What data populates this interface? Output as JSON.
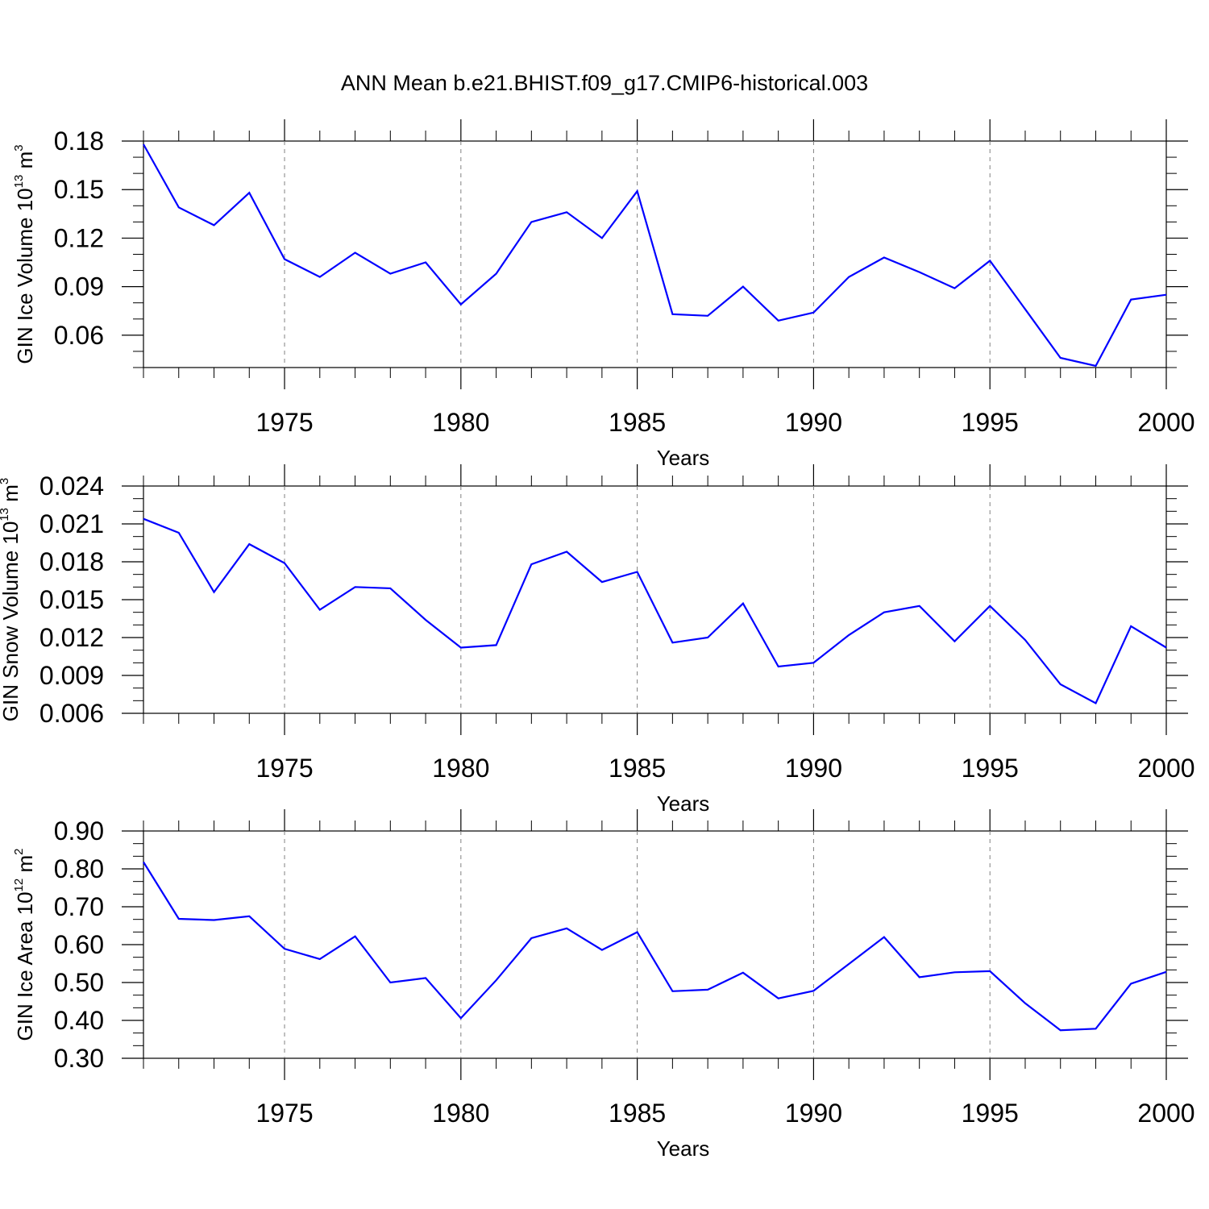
{
  "colors": {
    "line": "#0000ff",
    "axis": "#000000",
    "grid": "#808080",
    "background": "#ffffff"
  },
  "chart_data": [
    {
      "type": "line",
      "title": "ANN Mean b.e21.BHIST.f09_g17.CMIP6-historical.003",
      "xlabel": "Years",
      "ylabel": {
        "base": "GIN Ice Volume 10",
        "exp": "13",
        "unit": " m",
        "unit_exp": "3"
      },
      "xlim": [
        1971,
        2000
      ],
      "ylim": [
        0.04,
        0.18
      ],
      "x_ticks": [
        1975,
        1980,
        1985,
        1990,
        1995,
        2000
      ],
      "y_ticks": [
        "0.06",
        "0.09",
        "0.12",
        "0.15",
        "0.18"
      ],
      "grid": "vertical dashed at major x ticks",
      "x": [
        1971,
        1972,
        1973,
        1974,
        1975,
        1976,
        1977,
        1978,
        1979,
        1980,
        1981,
        1982,
        1983,
        1984,
        1985,
        1986,
        1987,
        1988,
        1989,
        1990,
        1991,
        1992,
        1993,
        1994,
        1995,
        1996,
        1997,
        1998,
        1999,
        2000
      ],
      "series": [
        {
          "values": [
            0.178,
            0.139,
            0.128,
            0.148,
            0.107,
            0.096,
            0.111,
            0.098,
            0.105,
            0.079,
            0.098,
            0.13,
            0.136,
            0.12,
            0.149,
            0.073,
            0.072,
            0.09,
            0.069,
            0.074,
            0.096,
            0.108,
            0.099,
            0.089,
            0.106,
            0.076,
            0.046,
            0.041,
            0.082,
            0.085
          ]
        }
      ]
    },
    {
      "type": "line",
      "title": "",
      "xlabel": "Years",
      "ylabel": {
        "base": "GIN Snow Volume 10",
        "exp": "13",
        "unit": " m",
        "unit_exp": "3"
      },
      "xlim": [
        1971,
        2000
      ],
      "ylim": [
        0.006,
        0.024
      ],
      "x_ticks": [
        1975,
        1980,
        1985,
        1990,
        1995,
        2000
      ],
      "y_ticks": [
        "0.006",
        "0.009",
        "0.012",
        "0.015",
        "0.018",
        "0.021",
        "0.024"
      ],
      "grid": "vertical dashed at major x ticks",
      "x": [
        1971,
        1972,
        1973,
        1974,
        1975,
        1976,
        1977,
        1978,
        1979,
        1980,
        1981,
        1982,
        1983,
        1984,
        1985,
        1986,
        1987,
        1988,
        1989,
        1990,
        1991,
        1992,
        1993,
        1994,
        1995,
        1996,
        1997,
        1998,
        1999,
        2000
      ],
      "series": [
        {
          "values": [
            0.0214,
            0.0203,
            0.0156,
            0.0194,
            0.0179,
            0.0142,
            0.016,
            0.0159,
            0.0134,
            0.0112,
            0.0114,
            0.0178,
            0.0188,
            0.0164,
            0.0172,
            0.0116,
            0.012,
            0.0147,
            0.0097,
            0.01,
            0.0122,
            0.014,
            0.0145,
            0.0117,
            0.0145,
            0.0118,
            0.0083,
            0.0068,
            0.0129,
            0.0112
          ]
        }
      ]
    },
    {
      "type": "line",
      "title": "",
      "xlabel": "Years",
      "ylabel": {
        "base": "GIN Ice Area 10",
        "exp": "12",
        "unit": " m",
        "unit_exp": "2"
      },
      "xlim": [
        1971,
        2000
      ],
      "ylim": [
        0.3,
        0.9
      ],
      "x_ticks": [
        1975,
        1980,
        1985,
        1990,
        1995,
        2000
      ],
      "y_ticks": [
        "0.30",
        "0.40",
        "0.50",
        "0.60",
        "0.70",
        "0.80",
        "0.90"
      ],
      "grid": "vertical dashed at major x ticks",
      "x": [
        1971,
        1972,
        1973,
        1974,
        1975,
        1976,
        1977,
        1978,
        1979,
        1980,
        1981,
        1982,
        1983,
        1984,
        1985,
        1986,
        1987,
        1988,
        1989,
        1990,
        1991,
        1992,
        1993,
        1994,
        1995,
        1996,
        1997,
        1998,
        1999,
        2000
      ],
      "series": [
        {
          "values": [
            0.818,
            0.668,
            0.665,
            0.675,
            0.589,
            0.562,
            0.622,
            0.5,
            0.512,
            0.406,
            0.506,
            0.617,
            0.643,
            0.586,
            0.633,
            0.477,
            0.481,
            0.526,
            0.458,
            0.478,
            0.549,
            0.62,
            0.514,
            0.527,
            0.53,
            0.445,
            0.374,
            0.378,
            0.497,
            0.528
          ]
        }
      ]
    }
  ]
}
